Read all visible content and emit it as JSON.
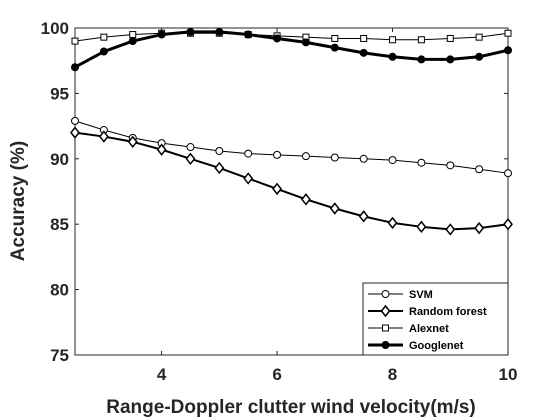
{
  "chart_data": {
    "type": "line",
    "xlabel": "Range-Doppler clutter wind velocity(m/s)",
    "ylabel": "Accuracy (%)",
    "xlim": [
      2.5,
      10
    ],
    "ylim": [
      75,
      100
    ],
    "x_ticks": [
      4,
      6,
      8,
      10
    ],
    "y_ticks": [
      75,
      80,
      85,
      90,
      95,
      100
    ],
    "legend_position": "bottom-right",
    "grid": false,
    "x": [
      2.5,
      3.0,
      3.5,
      4.0,
      4.5,
      5.0,
      5.5,
      6.0,
      6.5,
      7.0,
      7.5,
      8.0,
      8.5,
      9.0,
      9.5,
      10.0
    ],
    "series": [
      {
        "name": "SVM",
        "marker": "circle-open",
        "line_width": 1,
        "values": [
          92.9,
          92.2,
          91.6,
          91.2,
          90.9,
          90.6,
          90.4,
          90.3,
          90.2,
          90.1,
          90.0,
          89.9,
          89.7,
          89.5,
          89.2,
          88.9
        ]
      },
      {
        "name": "Random forest",
        "marker": "diamond-open",
        "line_width": 2,
        "values": [
          92.0,
          91.7,
          91.3,
          90.7,
          90.0,
          89.3,
          88.5,
          87.7,
          86.9,
          86.2,
          85.6,
          85.1,
          84.8,
          84.6,
          84.7,
          85.0
        ]
      },
      {
        "name": "Alexnet",
        "marker": "square-open",
        "line_width": 1,
        "values": [
          99.0,
          99.3,
          99.5,
          99.6,
          99.6,
          99.6,
          99.5,
          99.4,
          99.3,
          99.2,
          99.2,
          99.1,
          99.1,
          99.2,
          99.3,
          99.6
        ]
      },
      {
        "name": "Googlenet",
        "marker": "circle-filled",
        "line_width": 3,
        "values": [
          97.0,
          98.2,
          99.0,
          99.5,
          99.7,
          99.7,
          99.5,
          99.2,
          98.9,
          98.5,
          98.1,
          97.8,
          97.6,
          97.6,
          97.8,
          98.3
        ]
      }
    ]
  }
}
